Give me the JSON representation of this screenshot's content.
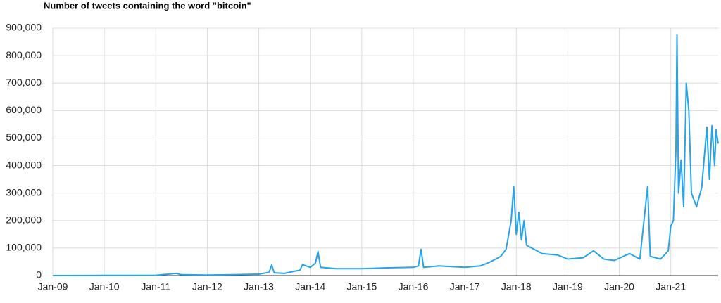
{
  "chart_data": {
    "type": "line",
    "title": "Number of tweets containing the word \"bitcoin\"",
    "x": [
      2009.0,
      2010.0,
      2011.0,
      2011.4,
      2011.5,
      2012.0,
      2012.5,
      2013.0,
      2013.2,
      2013.25,
      2013.3,
      2013.5,
      2013.8,
      2013.85,
      2014.0,
      2014.1,
      2014.15,
      2014.2,
      2014.5,
      2015.0,
      2015.5,
      2016.0,
      2016.1,
      2016.15,
      2016.2,
      2016.5,
      2017.0,
      2017.3,
      2017.5,
      2017.7,
      2017.8,
      2017.9,
      2017.95,
      2018.0,
      2018.05,
      2018.1,
      2018.15,
      2018.2,
      2018.5,
      2018.8,
      2019.0,
      2019.3,
      2019.5,
      2019.7,
      2019.9,
      2020.2,
      2020.4,
      2020.55,
      2020.6,
      2020.8,
      2020.95,
      2021.0,
      2021.05,
      2021.1,
      2021.12,
      2021.15,
      2021.2,
      2021.25,
      2021.3,
      2021.35,
      2021.4,
      2021.5,
      2021.6,
      2021.7,
      2021.75,
      2021.8,
      2021.85,
      2021.88,
      2021.92
    ],
    "values": [
      0,
      500,
      1000,
      8000,
      3000,
      2000,
      3000,
      5000,
      12000,
      38000,
      10000,
      8000,
      20000,
      40000,
      30000,
      45000,
      88000,
      30000,
      25000,
      25000,
      28000,
      30000,
      35000,
      95000,
      30000,
      35000,
      30000,
      35000,
      50000,
      70000,
      95000,
      200000,
      325000,
      150000,
      230000,
      130000,
      200000,
      110000,
      80000,
      75000,
      60000,
      65000,
      90000,
      60000,
      55000,
      80000,
      60000,
      325000,
      70000,
      60000,
      90000,
      180000,
      200000,
      460000,
      875000,
      300000,
      420000,
      250000,
      700000,
      600000,
      300000,
      250000,
      320000,
      540000,
      350000,
      545000,
      400000,
      530000,
      480000
    ],
    "color": "#29a3e8",
    "xlim": [
      2009,
      2021.92
    ],
    "xticks": [
      {
        "value": 2009,
        "label": "Jan-09"
      },
      {
        "value": 2010,
        "label": "Jan-10"
      },
      {
        "value": 2011,
        "label": "Jan-11"
      },
      {
        "value": 2012,
        "label": "Jan-12"
      },
      {
        "value": 2013,
        "label": "Jan-13"
      },
      {
        "value": 2014,
        "label": "Jan-14"
      },
      {
        "value": 2015,
        "label": "Jan-15"
      },
      {
        "value": 2016,
        "label": "Jan-16"
      },
      {
        "value": 2017,
        "label": "Jan-17"
      },
      {
        "value": 2018,
        "label": "Jan-18"
      },
      {
        "value": 2019,
        "label": "Jan-19"
      },
      {
        "value": 2020,
        "label": "Jan-20"
      },
      {
        "value": 2021,
        "label": "Jan-21"
      }
    ],
    "ylim": [
      0,
      900000
    ],
    "yticks": [
      0,
      {
        "value": 100000,
        "label": "100,000"
      },
      {
        "value": 200000,
        "label": "200,000"
      },
      {
        "value": 300000,
        "label": "300,000"
      },
      {
        "value": 400000,
        "label": "400,000"
      },
      {
        "value": 500000,
        "label": "500,000"
      },
      {
        "value": 600000,
        "label": "600,000"
      },
      {
        "value": 700000,
        "label": "700,000"
      },
      {
        "value": 800000,
        "label": "800,000"
      },
      {
        "value": 900000,
        "label": "900,000"
      }
    ],
    "grid": true
  }
}
